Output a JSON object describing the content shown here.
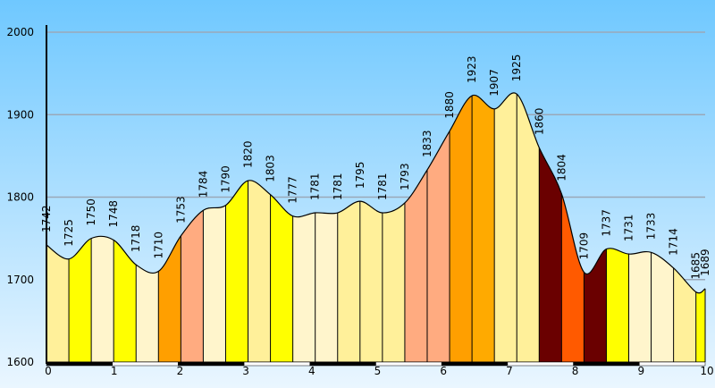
{
  "chart_data": {
    "type": "area",
    "title": "",
    "xlabel": "",
    "ylabel": "",
    "ylim": [
      1600,
      2000
    ],
    "xlim": [
      0,
      10
    ],
    "y_ticks": [
      "1600",
      "1700",
      "1800",
      "1900",
      "2000"
    ],
    "x_ticks": [
      "0",
      "1",
      "2",
      "3",
      "4",
      "5",
      "6",
      "7",
      "8",
      "9",
      "10"
    ],
    "grid": true,
    "x": [
      0,
      0.34,
      0.68,
      1.02,
      1.36,
      1.7,
      2.04,
      2.38,
      2.72,
      3.06,
      3.4,
      3.74,
      4.08,
      4.42,
      4.76,
      5.1,
      5.44,
      5.78,
      6.12,
      6.46,
      6.8,
      7.14,
      7.48,
      7.82,
      8.16,
      8.5,
      8.84,
      9.18,
      9.52,
      9.86,
      10.0
    ],
    "values": [
      1742,
      1725,
      1750,
      1748,
      1718,
      1710,
      1753,
      1784,
      1790,
      1820,
      1803,
      1777,
      1781,
      1781,
      1795,
      1781,
      1793,
      1833,
      1880,
      1923,
      1907,
      1925,
      1860,
      1804,
      1709,
      1737,
      1731,
      1733,
      1714,
      1685,
      1689
    ],
    "labels": [
      "1742",
      "1725",
      "1750",
      "1748",
      "1718",
      "1710",
      "1753",
      "1784",
      "1790",
      "1820",
      "1803",
      "1777",
      "1781",
      "1781",
      "1795",
      "1781",
      "1793",
      "1833",
      "1880",
      "1923",
      "1907",
      "1925",
      "1860",
      "1804",
      "1709",
      "1737",
      "1731",
      "1733",
      "1714",
      "1685",
      "1689"
    ],
    "colors": {
      "background_top": "#6fc8ff",
      "background_bottom": "#eaf6ff",
      "gridline": "#9aa8b8",
      "outline": "#000000",
      "segment_fills": [
        "#fff09a",
        "#ffff00",
        "#fff5cc",
        "#ffff00",
        "#fff5cc",
        "#ff9f00",
        "#ffab80",
        "#fff5cc",
        "#ffff00",
        "#fff09a",
        "#ffff00",
        "#fff5cc",
        "#fff5cc",
        "#fff09a",
        "#fff09a",
        "#fff09a",
        "#ffab80",
        "#ffab80",
        "#ff9f00",
        "#ffaa00",
        "#fff09a",
        "#fff09a",
        "#6a0000",
        "#ff5a00",
        "#6a0000",
        "#ffff00",
        "#fff5cc",
        "#fff5cc",
        "#fff09a",
        "#ffff00"
      ]
    }
  }
}
